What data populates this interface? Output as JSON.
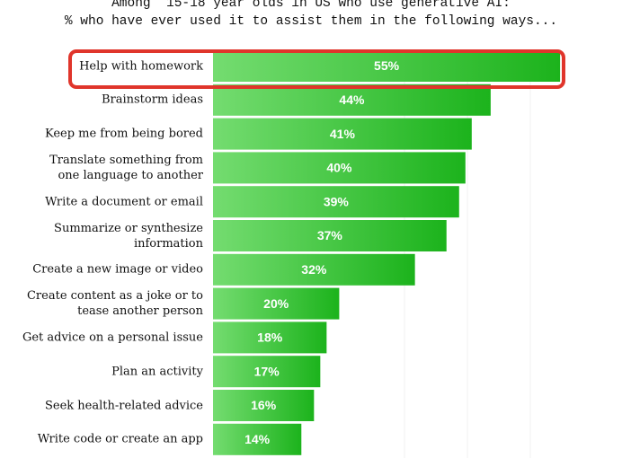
{
  "chart_data": {
    "type": "bar",
    "orientation": "horizontal",
    "title": "Among  15-18 year olds in US who use generative AI:",
    "subtitle": "% who have ever used it to assist them in the following ways...",
    "categories": [
      "Help with homework",
      "Brainstorm ideas",
      "Keep me from being bored",
      "Translate something from\none language to another",
      "Write a document or email",
      "Summarize or synthesize\ninformation",
      "Create a new image or video",
      "Create content as a joke or to\ntease another person",
      "Get advice on a personal issue",
      "Plan an activity",
      "Seek health-related advice",
      "Write code or create an app"
    ],
    "values": [
      55,
      44,
      41,
      40,
      39,
      37,
      32,
      20,
      18,
      17,
      16,
      14
    ],
    "value_labels": [
      "55%",
      "44%",
      "41%",
      "40%",
      "39%",
      "37%",
      "32%",
      "20%",
      "18%",
      "17%",
      "16%",
      "14%"
    ],
    "color": "#1cb31c"
  }
}
